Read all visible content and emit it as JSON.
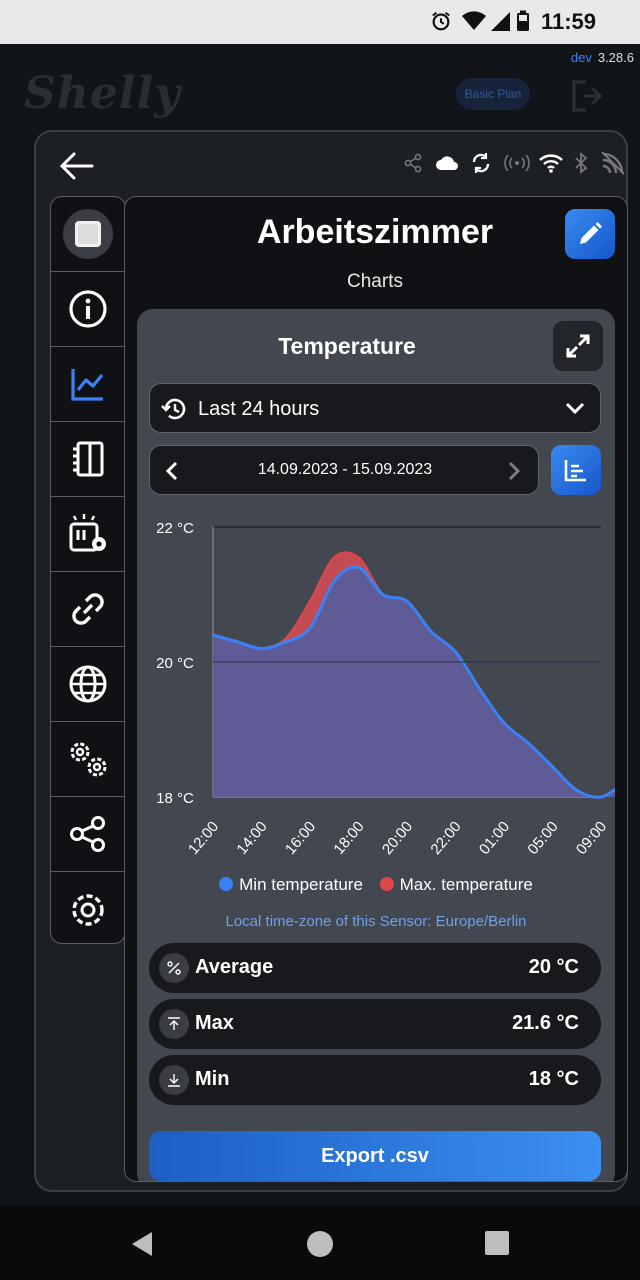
{
  "status_bar": {
    "time": "11:59"
  },
  "background_app": {
    "logo": "Shelly",
    "dev_label": "dev",
    "version": "3.28.6",
    "plan_button": "Basic Plan"
  },
  "device": {
    "name": "Arbeitszimmer",
    "section": "Charts"
  },
  "sidebar": {
    "items": [
      {
        "icon": "device-thumbnail-icon",
        "active": false
      },
      {
        "icon": "info-icon",
        "active": false
      },
      {
        "icon": "chart-icon",
        "active": true
      },
      {
        "icon": "device-panel-icon",
        "active": false
      },
      {
        "icon": "device-settings-icon",
        "active": false
      },
      {
        "icon": "link-icon",
        "active": false
      },
      {
        "icon": "globe-icon",
        "active": false
      },
      {
        "icon": "gears-icon",
        "active": false
      },
      {
        "icon": "share-icon",
        "active": false
      },
      {
        "icon": "settings-icon",
        "active": false
      }
    ]
  },
  "card": {
    "title": "Temperature",
    "range_label": "Last 24 hours",
    "date_range": "14.09.2023 - 15.09.2023",
    "legend": {
      "min": "Min temperature",
      "max": "Max. temperature"
    },
    "timezone_note": "Local time-zone of this Sensor: Europe/Berlin",
    "stats": [
      {
        "label": "Average",
        "value": "20 °C",
        "icon": "percent-icon"
      },
      {
        "label": "Max",
        "value": "21.6 °C",
        "icon": "max-icon"
      },
      {
        "label": "Min",
        "value": "18 °C",
        "icon": "min-icon"
      }
    ],
    "export_label": "Export .csv"
  },
  "colors": {
    "accent": "#2f80ed",
    "min_series": "#3b82f6",
    "max_series": "#e0474c",
    "fill": "#5e5b96"
  },
  "chart_data": {
    "type": "area",
    "y_tick_labels": [
      "22 °C",
      "20 °C",
      "18 °C"
    ],
    "ylim": [
      18,
      22
    ],
    "x_tick_labels": [
      "12:00",
      "14:00",
      "16:00",
      "18:00",
      "20:00",
      "22:00",
      "01:00",
      "05:00",
      "09:00"
    ],
    "x": [
      0,
      0.5,
      1,
      1.5,
      2,
      2.5,
      3,
      3.5,
      4,
      4.5,
      5,
      5.5,
      6,
      6.5,
      7,
      7.5,
      8,
      8.5,
      8.9
    ],
    "series": [
      {
        "name": "Max. temperature",
        "color": "#e0474c",
        "values": [
          20.4,
          20.3,
          20.2,
          20.35,
          20.9,
          21.55,
          21.55,
          21.0,
          20.8,
          20.45,
          20.15,
          19.6,
          19.1,
          18.8,
          18.45,
          18.1,
          18.0,
          18.2,
          18.2
        ]
      },
      {
        "name": "Min temperature",
        "color": "#3b82f6",
        "values": [
          20.4,
          20.3,
          20.2,
          20.3,
          20.5,
          21.2,
          21.4,
          21.0,
          20.9,
          20.45,
          20.15,
          19.6,
          19.1,
          18.8,
          18.45,
          18.1,
          18.0,
          18.2,
          18.2
        ]
      }
    ]
  }
}
